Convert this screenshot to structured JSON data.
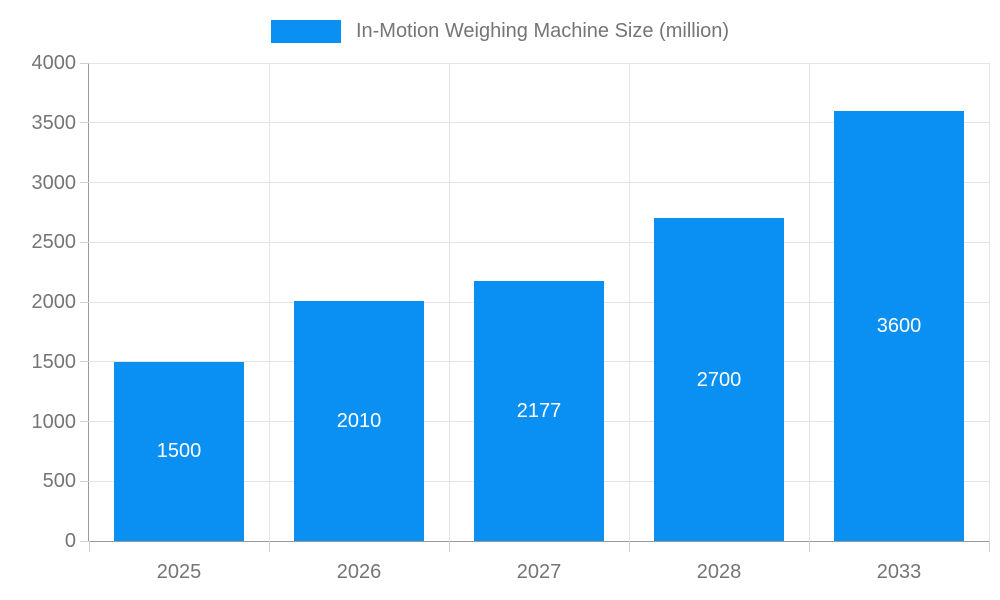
{
  "legend": {
    "label": "In-Motion Weighing Machine Size (million)"
  },
  "colors": {
    "bar": "#0a8ff2",
    "axis": "#999999",
    "grid": "#e4e4e4",
    "tick": "#cfcfcf",
    "text": "#757575",
    "bar_label": "#ffffff",
    "background": "#ffffff"
  },
  "chart_data": {
    "type": "bar",
    "title": "In-Motion Weighing Machine Size (million)",
    "categories": [
      "2025",
      "2026",
      "2027",
      "2028",
      "2033"
    ],
    "values": [
      1500,
      2010,
      2177,
      2700,
      3600
    ],
    "xlabel": "",
    "ylabel": "",
    "ylim": [
      0,
      4000
    ],
    "yticks": [
      0,
      500,
      1000,
      1500,
      2000,
      2500,
      3000,
      3500,
      4000
    ],
    "grid": true,
    "legend_position": "top",
    "bar_labels_inside": true
  }
}
